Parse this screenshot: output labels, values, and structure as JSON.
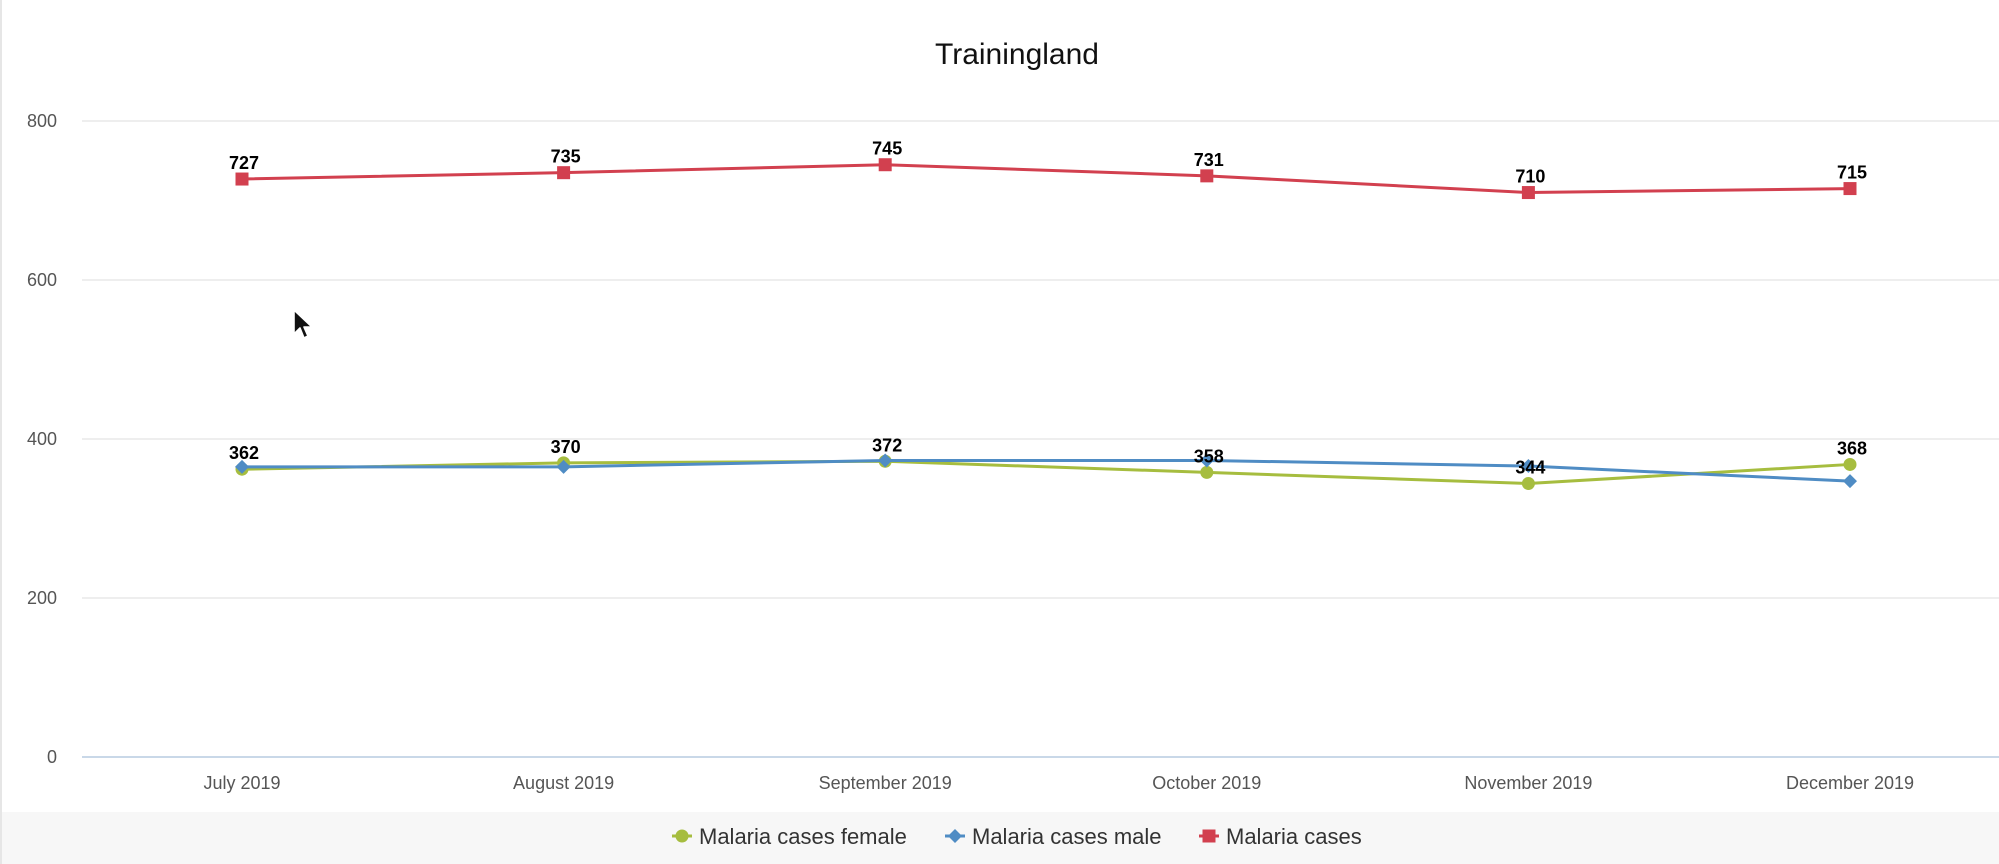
{
  "chart_data": {
    "type": "line",
    "title": "Trainingland",
    "categories": [
      "July 2019",
      "August 2019",
      "September 2019",
      "October 2019",
      "November 2019",
      "December 2019"
    ],
    "ylim": [
      0,
      800
    ],
    "yticks": [
      0,
      200,
      400,
      600,
      800
    ],
    "grid": true,
    "legend_position": "bottom-center",
    "series": [
      {
        "name": "Malaria cases female",
        "values": [
          362,
          370,
          372,
          358,
          344,
          368
        ],
        "color": "#a6bd3f",
        "marker": "circle",
        "show_labels": true
      },
      {
        "name": "Malaria cases male",
        "values": [
          365,
          365,
          373,
          373,
          366,
          347
        ],
        "color": "#4f8cc4",
        "marker": "diamond",
        "show_labels": false
      },
      {
        "name": "Malaria cases",
        "values": [
          727,
          735,
          745,
          731,
          710,
          715
        ],
        "color": "#d2404f",
        "marker": "square",
        "show_labels": true
      }
    ]
  }
}
